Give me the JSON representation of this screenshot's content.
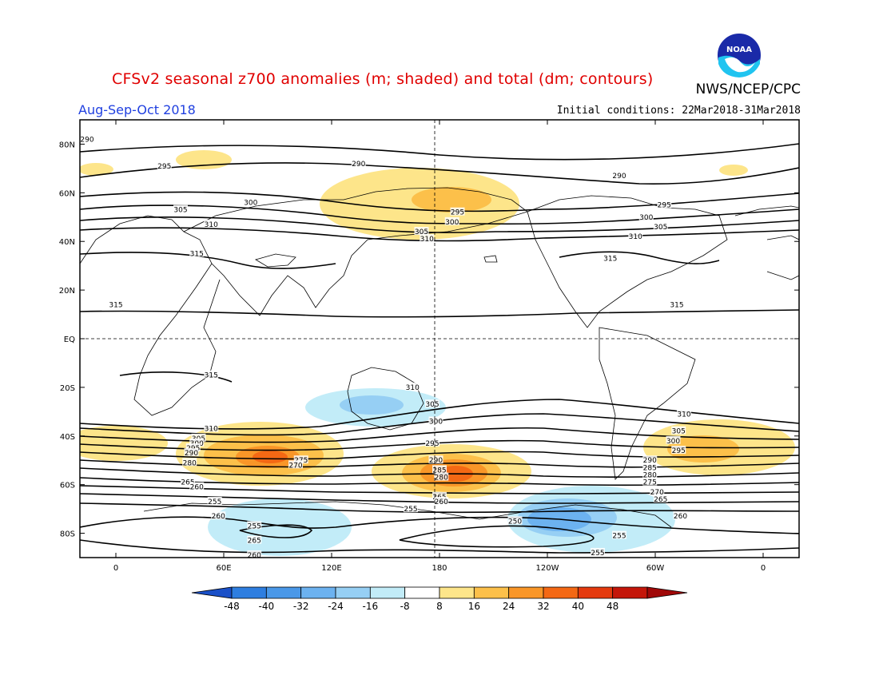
{
  "header": {
    "title": "CFSv2 seasonal z700 anomalies (m; shaded) and total (dm; contours)",
    "agency": "NWS/NCEP/CPC",
    "period": "Aug-Sep-Oct 2018",
    "initial_conditions": "Initial conditions: 22Mar2018-31Mar2018",
    "logo_text": "NOAA"
  },
  "axes": {
    "lat_ticks": [
      {
        "label": "80N",
        "lat": 80
      },
      {
        "label": "60N",
        "lat": 60
      },
      {
        "label": "40N",
        "lat": 40
      },
      {
        "label": "20N",
        "lat": 20
      },
      {
        "label": "EQ",
        "lat": 0
      },
      {
        "label": "20S",
        "lat": -20
      },
      {
        "label": "40S",
        "lat": -40
      },
      {
        "label": "60S",
        "lat": -60
      },
      {
        "label": "80S",
        "lat": -80
      }
    ],
    "lon_ticks": [
      {
        "label": "0",
        "lon": 0
      },
      {
        "label": "60E",
        "lon": 60
      },
      {
        "label": "120E",
        "lon": 120
      },
      {
        "label": "180",
        "lon": 180
      },
      {
        "label": "120W",
        "lon": 240
      },
      {
        "label": "60W",
        "lon": 300
      },
      {
        "label": "0",
        "lon": 360
      }
    ],
    "lon_range": [
      -20,
      380
    ],
    "lat_range": [
      -90,
      90
    ]
  },
  "colorbar": {
    "labels": [
      "-48",
      "-40",
      "-32",
      "-24",
      "-16",
      "-8",
      "8",
      "16",
      "24",
      "32",
      "40",
      "48"
    ],
    "colors": [
      "#1a50c8",
      "#2e7ee0",
      "#4a98e8",
      "#6cb2f0",
      "#96cff4",
      "#c2ecf8",
      "#ffffff",
      "#fde58a",
      "#fcc04a",
      "#f99628",
      "#f46814",
      "#e43a0e",
      "#c4160a",
      "#a00808"
    ]
  },
  "contours": [
    {
      "label": "290",
      "lat": 82,
      "lon": -16
    },
    {
      "label": "295",
      "lat": 71,
      "lon": 27
    },
    {
      "label": "290",
      "lat": 72,
      "lon": 135
    },
    {
      "label": "290",
      "lat": 67,
      "lon": 280
    },
    {
      "label": "300",
      "lat": 56,
      "lon": 75
    },
    {
      "label": "305",
      "lat": 53,
      "lon": 36
    },
    {
      "label": "295",
      "lat": 52,
      "lon": 190
    },
    {
      "label": "300",
      "lat": 48,
      "lon": 187
    },
    {
      "label": "305",
      "lat": 44,
      "lon": 170
    },
    {
      "label": "310",
      "lat": 41,
      "lon": 173
    },
    {
      "label": "295",
      "lat": 55,
      "lon": 305
    },
    {
      "label": "300",
      "lat": 50,
      "lon": 295
    },
    {
      "label": "305",
      "lat": 46,
      "lon": 303
    },
    {
      "label": "310",
      "lat": 42,
      "lon": 289
    },
    {
      "label": "310",
      "lat": 47,
      "lon": 53
    },
    {
      "label": "315",
      "lat": 35,
      "lon": 45
    },
    {
      "label": "315",
      "lat": 33,
      "lon": 275
    },
    {
      "label": "315",
      "lat": 14,
      "lon": 0
    },
    {
      "label": "315",
      "lat": 14,
      "lon": 312
    },
    {
      "label": "315",
      "lat": -15,
      "lon": 53
    },
    {
      "label": "310",
      "lat": -20,
      "lon": 165
    },
    {
      "label": "305",
      "lat": -27,
      "lon": 176
    },
    {
      "label": "300",
      "lat": -34,
      "lon": 178
    },
    {
      "label": "310",
      "lat": -31,
      "lon": 316
    },
    {
      "label": "310",
      "lat": -37,
      "lon": 53
    },
    {
      "label": "305",
      "lat": -41,
      "lon": 46
    },
    {
      "label": "300",
      "lat": -43,
      "lon": 45
    },
    {
      "label": "295",
      "lat": -45,
      "lon": 43
    },
    {
      "label": "290",
      "lat": -47,
      "lon": 42
    },
    {
      "label": "280",
      "lat": -51,
      "lon": 41
    },
    {
      "label": "275",
      "lat": -50,
      "lon": 103
    },
    {
      "label": "270",
      "lat": -52,
      "lon": 100
    },
    {
      "label": "265",
      "lat": -59,
      "lon": 40
    },
    {
      "label": "260",
      "lat": -61,
      "lon": 45
    },
    {
      "label": "295",
      "lat": -43,
      "lon": 176
    },
    {
      "label": "290",
      "lat": -50,
      "lon": 178
    },
    {
      "label": "285",
      "lat": -54,
      "lon": 180
    },
    {
      "label": "280",
      "lat": -57,
      "lon": 181
    },
    {
      "label": "265",
      "lat": -65,
      "lon": 180
    },
    {
      "label": "260",
      "lat": -67,
      "lon": 181
    },
    {
      "label": "305",
      "lat": -38,
      "lon": 313
    },
    {
      "label": "300",
      "lat": -42,
      "lon": 310
    },
    {
      "label": "295",
      "lat": -46,
      "lon": 313
    },
    {
      "label": "290",
      "lat": -50,
      "lon": 297
    },
    {
      "label": "285",
      "lat": -53,
      "lon": 297
    },
    {
      "label": "280",
      "lat": -56,
      "lon": 297
    },
    {
      "label": "275",
      "lat": -59,
      "lon": 297
    },
    {
      "label": "270",
      "lat": -63,
      "lon": 301
    },
    {
      "label": "265",
      "lat": -66,
      "lon": 303
    },
    {
      "label": "260",
      "lat": -73,
      "lon": 314
    },
    {
      "label": "255",
      "lat": -67,
      "lon": 55
    },
    {
      "label": "260",
      "lat": -73,
      "lon": 57
    },
    {
      "label": "255",
      "lat": -77,
      "lon": 77
    },
    {
      "label": "265",
      "lat": -83,
      "lon": 77
    },
    {
      "label": "260",
      "lat": -89,
      "lon": 77
    },
    {
      "label": "255",
      "lat": -70,
      "lon": 164
    },
    {
      "label": "250",
      "lat": -75,
      "lon": 222
    },
    {
      "label": "255",
      "lat": -81,
      "lon": 280
    },
    {
      "label": "255",
      "lat": -88,
      "lon": 268
    }
  ]
}
